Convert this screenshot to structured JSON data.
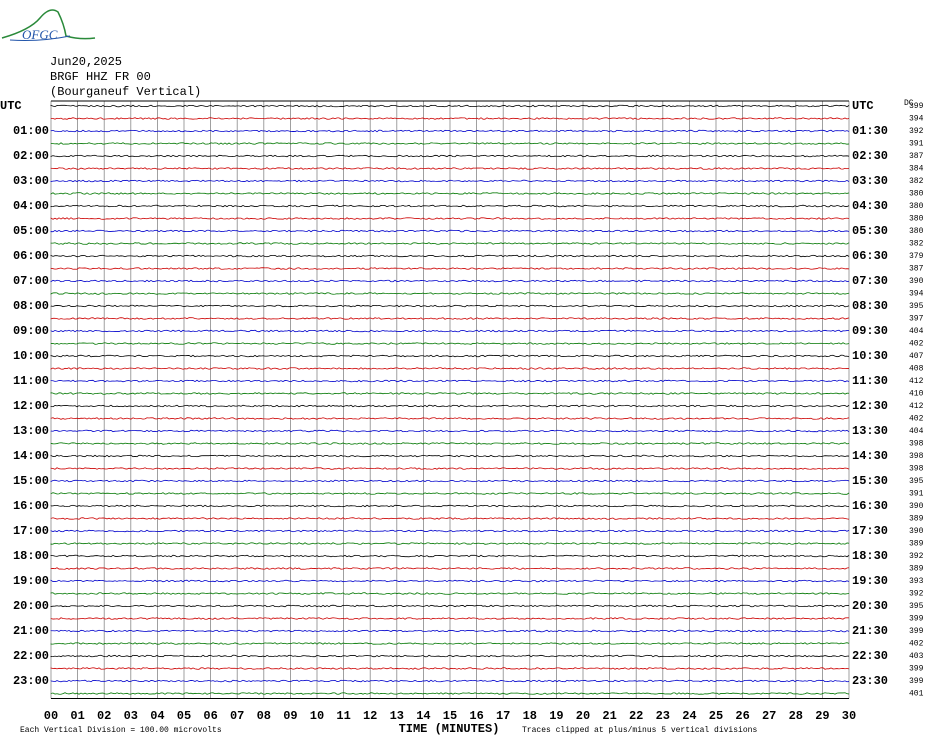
{
  "logo": "OFGC",
  "header": {
    "date": "Jun20,2025",
    "station": "BRGF HHZ FR 00",
    "location": "(Bourganeuf Vertical)"
  },
  "left_labels": [
    "UTC",
    "01:00",
    "02:00",
    "03:00",
    "04:00",
    "05:00",
    "06:00",
    "07:00",
    "08:00",
    "09:00",
    "10:00",
    "11:00",
    "12:00",
    "13:00",
    "14:00",
    "15:00",
    "16:00",
    "17:00",
    "18:00",
    "19:00",
    "20:00",
    "21:00",
    "22:00",
    "23:00"
  ],
  "right_labels": [
    "UTC",
    "01:30",
    "02:30",
    "03:30",
    "04:30",
    "05:30",
    "06:30",
    "07:30",
    "08:30",
    "09:30",
    "10:30",
    "11:30",
    "12:30",
    "13:30",
    "14:30",
    "15:30",
    "16:30",
    "17:30",
    "18:30",
    "19:30",
    "20:30",
    "21:30",
    "22:30",
    "23:30"
  ],
  "dc_label": "DC",
  "dc_values": [
    "399",
    "394",
    "392",
    "391",
    "387",
    "384",
    "382",
    "380",
    "380",
    "380",
    "380",
    "382",
    "379",
    "387",
    "390",
    "394",
    "395",
    "397",
    "404",
    "402",
    "407",
    "408",
    "412",
    "410",
    "412",
    "402",
    "404",
    "398",
    "398",
    "398",
    "395",
    "391",
    "390",
    "389",
    "390",
    "389",
    "392",
    "389",
    "393",
    "392",
    "395",
    "399",
    "399",
    "402",
    "403",
    "399",
    "399",
    "401"
  ],
  "x_ticks": [
    "00",
    "01",
    "02",
    "03",
    "04",
    "05",
    "06",
    "07",
    "08",
    "09",
    "10",
    "11",
    "12",
    "13",
    "14",
    "15",
    "16",
    "17",
    "18",
    "19",
    "20",
    "21",
    "22",
    "23",
    "24",
    "25",
    "26",
    "27",
    "28",
    "29",
    "30"
  ],
  "x_axis_label": "TIME (MINUTES)",
  "footer_left": "Each Vertical Division =  100.00 microvolts",
  "footer_right": "Traces clipped at plus/minus 5 vertical divisions"
}
